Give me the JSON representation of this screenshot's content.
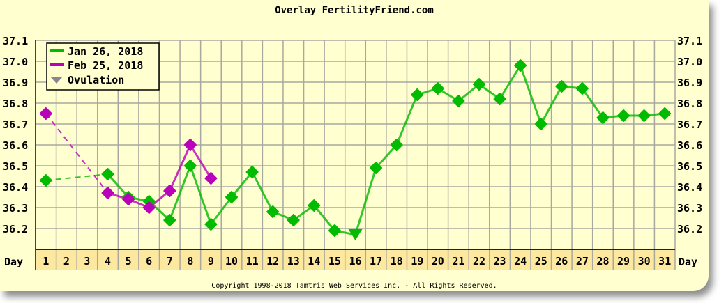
{
  "chart_data": {
    "type": "line",
    "title": "Overlay FertilityFriend.com",
    "xlabel": "Day",
    "ylabel": "",
    "x": [
      1,
      2,
      3,
      4,
      5,
      6,
      7,
      8,
      9,
      10,
      11,
      12,
      13,
      14,
      15,
      16,
      17,
      18,
      19,
      20,
      21,
      22,
      23,
      24,
      25,
      26,
      27,
      28,
      29,
      30,
      31
    ],
    "yticks": [
      "37.1",
      "37.0",
      "36.9",
      "36.8",
      "36.7",
      "36.6",
      "36.5",
      "36.4",
      "36.3",
      "36.2"
    ],
    "ylim": [
      36.1,
      37.1
    ],
    "grid": true,
    "legend_position": "top-left",
    "series": [
      {
        "name": "Jan 26, 2018",
        "color": "#00bb00",
        "points": [
          [
            1,
            36.43
          ],
          [
            4,
            36.46
          ],
          [
            5,
            36.35
          ],
          [
            6,
            36.33
          ],
          [
            7,
            36.24
          ],
          [
            8,
            36.5
          ],
          [
            9,
            36.22
          ],
          [
            10,
            36.35
          ],
          [
            11,
            36.47
          ],
          [
            12,
            36.28
          ],
          [
            13,
            36.24
          ],
          [
            14,
            36.31
          ],
          [
            15,
            36.19
          ],
          [
            16,
            36.17
          ],
          [
            17,
            36.49
          ],
          [
            18,
            36.6
          ],
          [
            19,
            36.84
          ],
          [
            20,
            36.87
          ],
          [
            21,
            36.81
          ],
          [
            22,
            36.89
          ],
          [
            23,
            36.82
          ],
          [
            24,
            36.98
          ],
          [
            25,
            36.7
          ],
          [
            26,
            36.88
          ],
          [
            27,
            36.87
          ],
          [
            28,
            36.73
          ],
          [
            29,
            36.74
          ],
          [
            30,
            36.74
          ],
          [
            31,
            36.75
          ]
        ],
        "ovulation_day": 16
      },
      {
        "name": "Feb 25, 2018",
        "color": "#bb00bb",
        "points": [
          [
            1,
            36.75
          ],
          [
            4,
            36.37
          ],
          [
            5,
            36.34
          ],
          [
            6,
            36.3
          ],
          [
            7,
            36.38
          ],
          [
            8,
            36.6
          ],
          [
            9,
            36.44
          ]
        ]
      }
    ],
    "legend": [
      "Jan 26, 2018",
      "Feb 25, 2018",
      "Ovulation"
    ],
    "ovulation_color": "#888888"
  },
  "copyright": "Copyright 1998-2018 Tamtris Web Services Inc. - All Rights Reserved."
}
